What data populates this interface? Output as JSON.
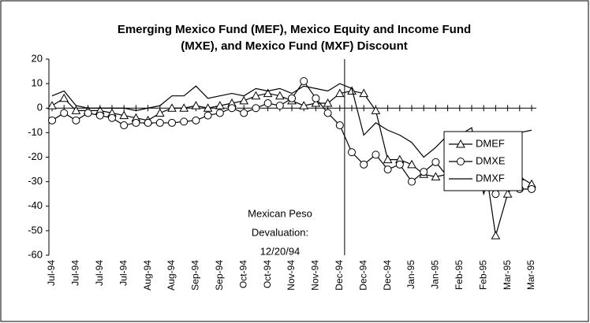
{
  "chart_data": {
    "type": "line",
    "title": [
      "Emerging Mexico Fund (MEF), Mexico Equity and Income Fund",
      "(MXE), and Mexico Fund (MXF) Discount"
    ],
    "annotation": [
      "Mexican Peso",
      "Devaluation:",
      "12/20/94"
    ],
    "categories": [
      "Jul-94",
      null,
      "Jul-94",
      null,
      "Jul-94",
      null,
      "Jul-94",
      null,
      "Aug-94",
      null,
      "Aug-94",
      null,
      "Sep-94",
      null,
      "Sep-94",
      null,
      "Oct-94",
      null,
      "Oct-94",
      null,
      "Nov-94",
      null,
      "Nov-94",
      null,
      "Dec-94",
      null,
      "Dec-94",
      null,
      "Dec-94",
      null,
      "Jan-95",
      null,
      "Jan-95",
      null,
      "Feb-95",
      null,
      "Feb-95",
      null,
      "Mar-95",
      null,
      "Mar-95"
    ],
    "series": [
      {
        "name": "DMEF",
        "color": "#000000",
        "marker": "triangle",
        "values": [
          1,
          4,
          -1,
          -1,
          -1,
          -2,
          -3,
          -4,
          -5,
          -2,
          0,
          0,
          1,
          0,
          1,
          2,
          3,
          5,
          6,
          5,
          3,
          1,
          2,
          2,
          6,
          7,
          6,
          -1,
          -21,
          -21,
          -23,
          -27,
          -28,
          -27,
          -28,
          -12,
          -19,
          -52,
          -35,
          -28,
          -31
        ]
      },
      {
        "name": "DMXE",
        "color": "#000000",
        "marker": "circle",
        "values": [
          -5,
          -2,
          -5,
          -2,
          -3,
          -4,
          -7,
          -6,
          -6,
          -6,
          -6,
          -5.5,
          -5,
          -3,
          -2,
          0,
          -2,
          0,
          2,
          1,
          4,
          11,
          4,
          -2,
          -7,
          -18,
          -23,
          -19,
          -25,
          -23,
          -30,
          -26,
          -22,
          -28,
          -19,
          -20,
          -26,
          -35,
          -24,
          -33,
          -33
        ]
      },
      {
        "name": "DMXF",
        "color": "#000000",
        "marker": "none",
        "values": [
          5,
          7,
          1,
          0,
          0,
          0,
          0,
          -1,
          0,
          1,
          5,
          5,
          9,
          4,
          5,
          6,
          5,
          8,
          7,
          8,
          6,
          9,
          8,
          7,
          10,
          8,
          -11,
          -6,
          -9,
          -11,
          -14,
          -20,
          -16,
          -11,
          -11,
          -8,
          -35,
          -21,
          -20,
          -10,
          -9
        ]
      }
    ],
    "ylim": [
      -60,
      20
    ],
    "yticks": [
      -60,
      -50,
      -40,
      -30,
      -20,
      -10,
      0,
      10,
      20
    ],
    "legend": "right"
  }
}
